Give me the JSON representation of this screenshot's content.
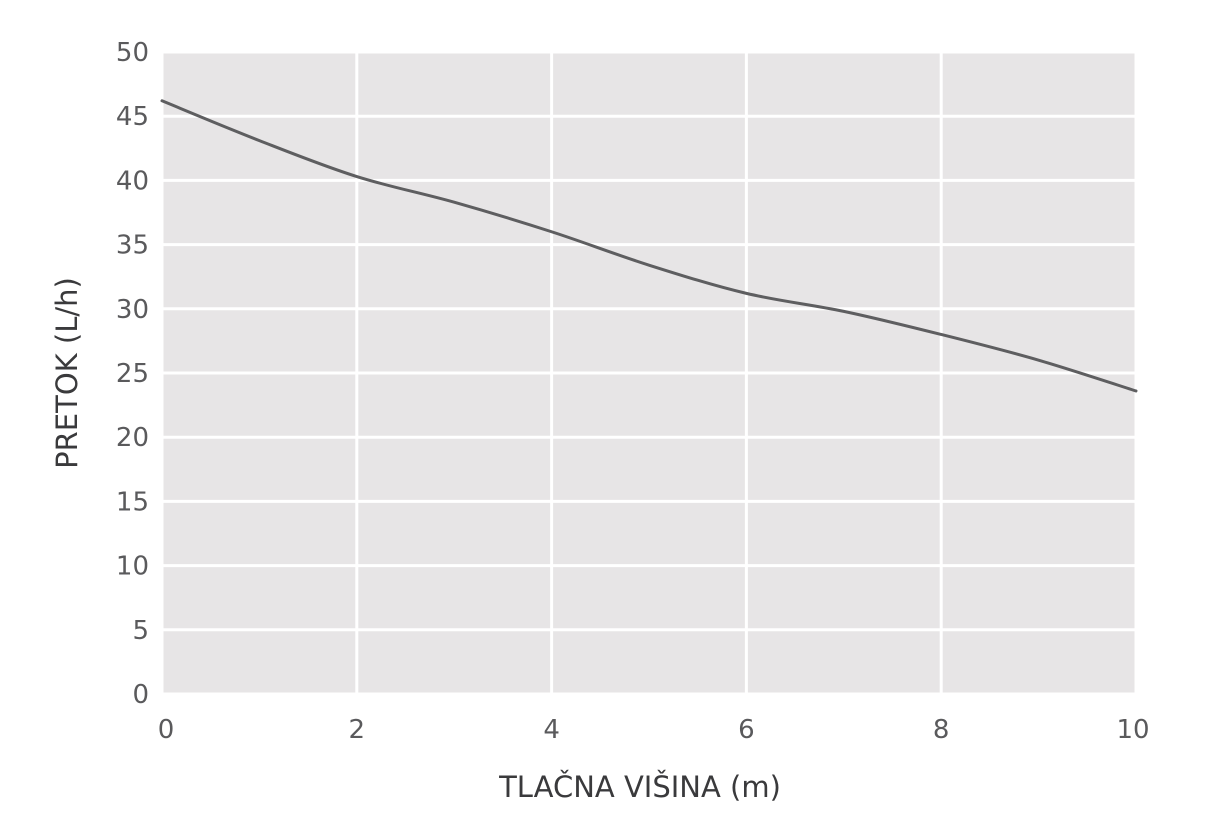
{
  "chart_data": {
    "type": "line",
    "title": "",
    "xlabel": "TLAČNA VIŠINA (m)",
    "ylabel": "PRETOK (L/h)",
    "xlim": [
      0,
      10
    ],
    "ylim": [
      0,
      50
    ],
    "x_ticks": [
      "0",
      "2",
      "4",
      "6",
      "8",
      "10"
    ],
    "y_ticks": [
      "0",
      "5",
      "10",
      "15",
      "20",
      "25",
      "30",
      "35",
      "40",
      "45",
      "50"
    ],
    "grid": true,
    "legend": "none",
    "series": [
      {
        "x": [
          0,
          1,
          2,
          3,
          4,
          5,
          6,
          7,
          8,
          9,
          10
        ],
        "y": [
          46.2,
          43.1,
          40.3,
          38.3,
          36.0,
          33.4,
          31.2,
          29.8,
          28.0,
          26.0,
          23.6
        ]
      }
    ],
    "colors": {
      "plot_background": "#e7e5e6",
      "grid": "#ffffff",
      "line": "#5e5e60"
    }
  }
}
